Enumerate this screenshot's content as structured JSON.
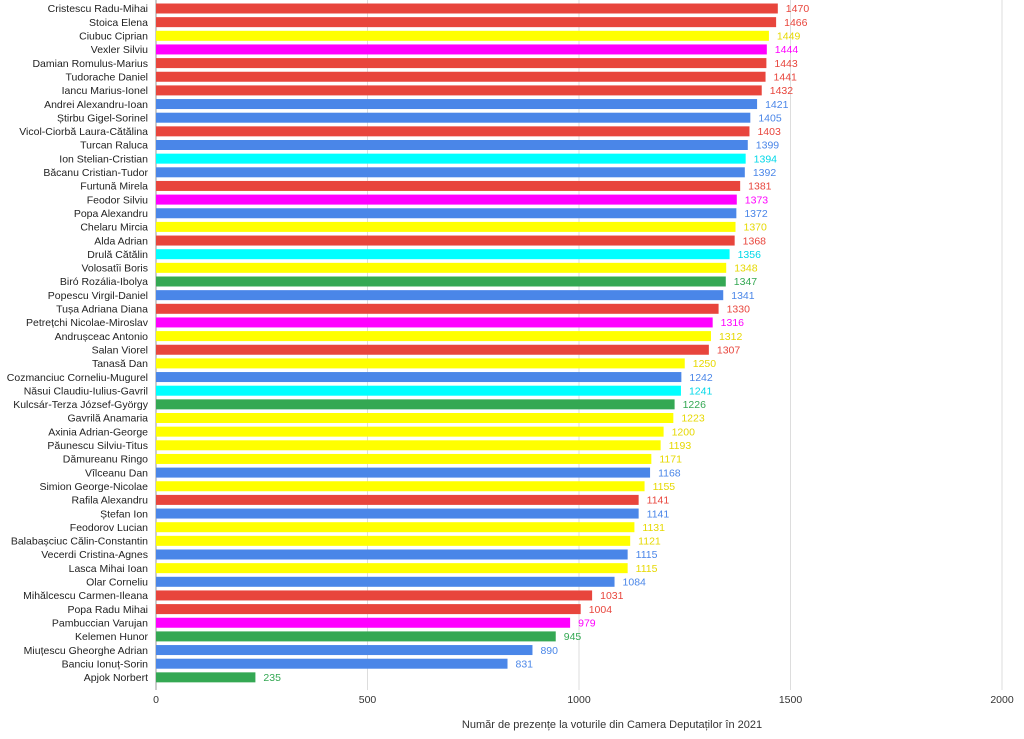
{
  "chart_data": {
    "type": "bar",
    "orientation": "horizontal",
    "xlabel": "Număr de prezențe la voturile din Camera Deputaților în 2021",
    "xlim": [
      0,
      2000
    ],
    "xticks": [
      0,
      500,
      1000,
      1500,
      2000
    ],
    "grid": true,
    "legend": "none",
    "colors": {
      "red": "#e8453c",
      "blue": "#4a86e8",
      "yellow": "#ffff00",
      "magenta": "#ff00ff",
      "cyan": "#00ffff",
      "green": "#34a853"
    },
    "bars": [
      {
        "name": "Cristescu Radu-Mihai",
        "value": 1470,
        "color": "red"
      },
      {
        "name": "Stoica Elena",
        "value": 1466,
        "color": "red"
      },
      {
        "name": "Ciubuc Ciprian",
        "value": 1449,
        "color": "yellow"
      },
      {
        "name": "Vexler Silviu",
        "value": 1444,
        "color": "magenta"
      },
      {
        "name": "Damian Romulus-Marius",
        "value": 1443,
        "color": "red"
      },
      {
        "name": "Tudorache Daniel",
        "value": 1441,
        "color": "red"
      },
      {
        "name": "Iancu Marius-Ionel",
        "value": 1432,
        "color": "red"
      },
      {
        "name": "Andrei Alexandru-Ioan",
        "value": 1421,
        "color": "blue"
      },
      {
        "name": "Știrbu Gigel-Sorinel",
        "value": 1405,
        "color": "blue"
      },
      {
        "name": "Vicol-Ciorbă Laura-Cătălina",
        "value": 1403,
        "color": "red"
      },
      {
        "name": "Turcan Raluca",
        "value": 1399,
        "color": "blue"
      },
      {
        "name": "Ion Stelian-Cristian",
        "value": 1394,
        "color": "cyan"
      },
      {
        "name": "Băcanu Cristian-Tudor",
        "value": 1392,
        "color": "blue"
      },
      {
        "name": "Furtună Mirela",
        "value": 1381,
        "color": "red"
      },
      {
        "name": "Feodor Silviu",
        "value": 1373,
        "color": "magenta"
      },
      {
        "name": "Popa Alexandru",
        "value": 1372,
        "color": "blue"
      },
      {
        "name": "Chelaru Mircia",
        "value": 1370,
        "color": "yellow"
      },
      {
        "name": "Alda Adrian",
        "value": 1368,
        "color": "red"
      },
      {
        "name": "Drulă Cătălin",
        "value": 1356,
        "color": "cyan"
      },
      {
        "name": "Volosatîi Boris",
        "value": 1348,
        "color": "yellow"
      },
      {
        "name": "Biró Rozália-Ibolya",
        "value": 1347,
        "color": "green"
      },
      {
        "name": "Popescu Virgil-Daniel",
        "value": 1341,
        "color": "blue"
      },
      {
        "name": "Tușa Adriana Diana",
        "value": 1330,
        "color": "red"
      },
      {
        "name": "Petrețchi Nicolae-Miroslav",
        "value": 1316,
        "color": "magenta"
      },
      {
        "name": "Andrușceac Antonio",
        "value": 1312,
        "color": "yellow"
      },
      {
        "name": "Salan Viorel",
        "value": 1307,
        "color": "red"
      },
      {
        "name": "Tanasă Dan",
        "value": 1250,
        "color": "yellow"
      },
      {
        "name": "Cozmanciuc Corneliu-Mugurel",
        "value": 1242,
        "color": "blue"
      },
      {
        "name": "Năsui Claudiu-Iulius-Gavril",
        "value": 1241,
        "color": "cyan"
      },
      {
        "name": "Kulcsár-Terza József-György",
        "value": 1226,
        "color": "green"
      },
      {
        "name": "Gavrilă Anamaria",
        "value": 1223,
        "color": "yellow"
      },
      {
        "name": "Axinia Adrian-George",
        "value": 1200,
        "color": "yellow"
      },
      {
        "name": "Păunescu Silviu-Titus",
        "value": 1193,
        "color": "yellow"
      },
      {
        "name": "Dămureanu Ringo",
        "value": 1171,
        "color": "yellow"
      },
      {
        "name": "Vîlceanu Dan",
        "value": 1168,
        "color": "blue"
      },
      {
        "name": "Simion George-Nicolae",
        "value": 1155,
        "color": "yellow"
      },
      {
        "name": "Rafila Alexandru",
        "value": 1141,
        "color": "red"
      },
      {
        "name": "Ștefan Ion",
        "value": 1141,
        "color": "blue"
      },
      {
        "name": "Feodorov Lucian",
        "value": 1131,
        "color": "yellow"
      },
      {
        "name": "Balabașciuc Călin-Constantin",
        "value": 1121,
        "color": "yellow"
      },
      {
        "name": "Vecerdi Cristina-Agnes",
        "value": 1115,
        "color": "blue"
      },
      {
        "name": "Lasca Mihai Ioan",
        "value": 1115,
        "color": "yellow"
      },
      {
        "name": "Olar Corneliu",
        "value": 1084,
        "color": "blue"
      },
      {
        "name": "Mihălcescu Carmen-Ileana",
        "value": 1031,
        "color": "red"
      },
      {
        "name": "Popa Radu Mihai",
        "value": 1004,
        "color": "red"
      },
      {
        "name": "Pambuccian Varujan",
        "value": 979,
        "color": "magenta"
      },
      {
        "name": "Kelemen Hunor",
        "value": 945,
        "color": "green"
      },
      {
        "name": "Miuțescu Gheorghe Adrian",
        "value": 890,
        "color": "blue"
      },
      {
        "name": "Banciu Ionuț-Sorin",
        "value": 831,
        "color": "blue"
      },
      {
        "name": "Apjok Norbert",
        "value": 235,
        "color": "green"
      }
    ]
  }
}
